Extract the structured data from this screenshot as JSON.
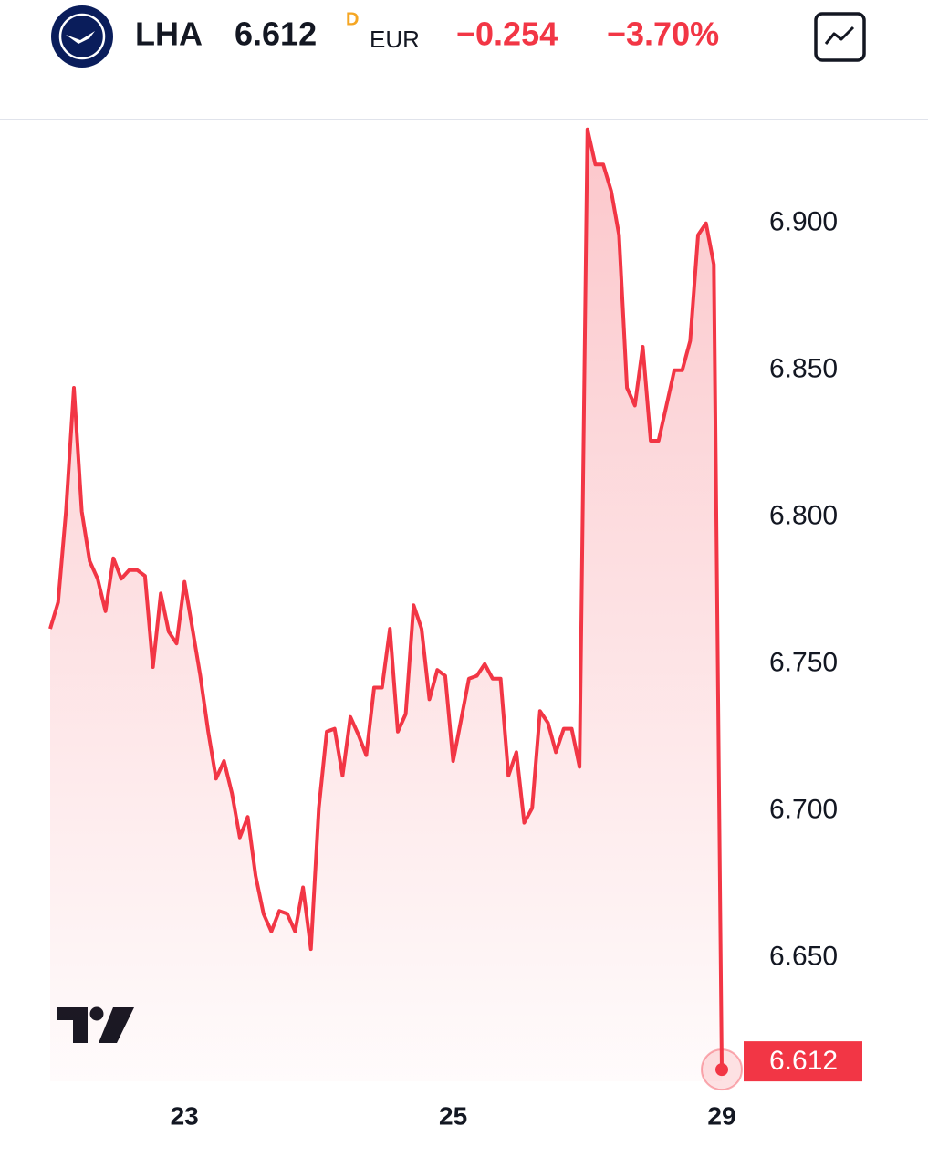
{
  "header": {
    "symbol": "LHA",
    "price": "6.612",
    "flag": "D",
    "currency": "EUR",
    "change": "−0.254",
    "change_percent": "−3.70%"
  },
  "chart_data": {
    "type": "line",
    "categories": [
      null,
      null,
      null,
      null,
      null,
      null,
      null,
      null,
      null,
      null,
      null,
      null,
      null,
      null,
      null,
      null,
      null,
      "23",
      null,
      null,
      null,
      null,
      null,
      null,
      null,
      null,
      null,
      null,
      null,
      null,
      null,
      null,
      null,
      null,
      null,
      null,
      null,
      null,
      null,
      null,
      null,
      null,
      null,
      null,
      null,
      null,
      null,
      null,
      null,
      null,
      null,
      "25",
      null,
      null,
      null,
      null,
      null,
      null,
      null,
      null,
      null,
      null,
      null,
      null,
      null,
      null,
      null,
      null,
      null,
      null,
      null,
      null,
      null,
      null,
      null,
      null,
      null,
      null,
      null,
      null,
      null,
      null,
      null,
      null,
      null,
      "29"
    ],
    "series": [
      {
        "name": "LHA",
        "color": "#f23645",
        "values": [
          6.762,
          6.771,
          6.802,
          6.844,
          6.802,
          6.785,
          6.779,
          6.768,
          6.786,
          6.779,
          6.782,
          6.782,
          6.78,
          6.749,
          6.774,
          6.761,
          6.757,
          6.778,
          6.762,
          6.746,
          6.727,
          6.711,
          6.717,
          6.706,
          6.691,
          6.698,
          6.678,
          6.665,
          6.659,
          6.666,
          6.665,
          6.659,
          6.674,
          6.653,
          6.701,
          6.727,
          6.728,
          6.712,
          6.732,
          6.726,
          6.719,
          6.742,
          6.742,
          6.762,
          6.727,
          6.733,
          6.77,
          6.762,
          6.738,
          6.748,
          6.746,
          6.717,
          6.731,
          6.745,
          6.746,
          6.75,
          6.745,
          6.745,
          6.712,
          6.72,
          6.696,
          6.701,
          6.734,
          6.73,
          6.72,
          6.728,
          6.728,
          6.715,
          6.932,
          6.92,
          6.92,
          6.911,
          6.896,
          6.844,
          6.838,
          6.858,
          6.826,
          6.826,
          6.838,
          6.85,
          6.85,
          6.86,
          6.896,
          6.9,
          6.886,
          6.612
        ]
      }
    ],
    "ylim": [
      6.608,
      6.935
    ],
    "yticks": [
      {
        "value": 6.65,
        "label": "6.650"
      },
      {
        "value": 6.7,
        "label": "6.700"
      },
      {
        "value": 6.75,
        "label": "6.750"
      },
      {
        "value": 6.8,
        "label": "6.800"
      },
      {
        "value": 6.85,
        "label": "6.850"
      },
      {
        "value": 6.9,
        "label": "6.900"
      }
    ],
    "grid": false
  }
}
